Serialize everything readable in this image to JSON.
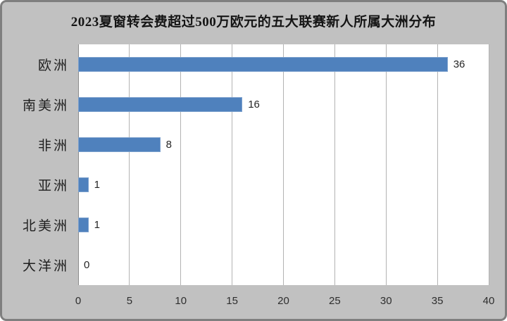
{
  "window": {
    "background_color": "#c1c1c1",
    "border_color": "#7f7f7f"
  },
  "chart_data": {
    "type": "bar",
    "orientation": "horizontal",
    "title": "2023夏窗转会费超过500万欧元的五大联赛新人所属大洲分布",
    "categories": [
      "欧洲",
      "南美洲",
      "非洲",
      "亚洲",
      "北美洲",
      "大洋洲"
    ],
    "values": [
      36,
      16,
      8,
      1,
      1,
      0
    ],
    "data_labels": [
      "36",
      "16",
      "8",
      "1",
      "1",
      "0"
    ],
    "xlabel": "",
    "ylabel": "",
    "xlim": [
      0,
      40
    ],
    "x_ticks": [
      0,
      5,
      10,
      15,
      20,
      25,
      30,
      35,
      40
    ],
    "grid": "vertical-only",
    "legend": "none",
    "bar_color": "#4f81bd",
    "plot_background": "#ffffff",
    "gridline_color": "#b3b3b3",
    "axis_line_color": "#8c8c8c"
  }
}
